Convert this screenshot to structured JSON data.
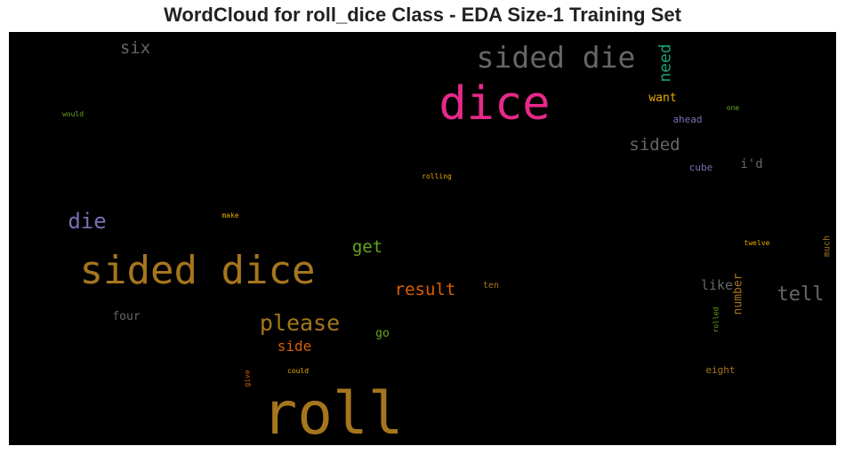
{
  "title": "WordCloud for roll_dice Class - EDA Size-1 Training Set",
  "chart_data": {
    "type": "wordcloud",
    "background": "#000000",
    "words": [
      {
        "text": "roll",
        "color": "#a6761d",
        "rotated": false
      },
      {
        "text": "dice",
        "color": "#e7298a",
        "rotated": false
      },
      {
        "text": "sided dice",
        "color": "#a6761d",
        "rotated": false
      },
      {
        "text": "sided die",
        "color": "#666666",
        "rotated": false
      },
      {
        "text": "please",
        "color": "#a6761d",
        "rotated": false
      },
      {
        "text": "die",
        "color": "#7570b3",
        "rotated": false
      },
      {
        "text": "tell",
        "color": "#666666",
        "rotated": false
      },
      {
        "text": "result",
        "color": "#d95f02",
        "rotated": false
      },
      {
        "text": "sided",
        "color": "#666666",
        "rotated": false
      },
      {
        "text": "get",
        "color": "#66a61e",
        "rotated": false
      },
      {
        "text": "six",
        "color": "#666666",
        "rotated": false
      },
      {
        "text": "need",
        "color": "#1b9e77",
        "rotated": true
      },
      {
        "text": "side",
        "color": "#d95f02",
        "rotated": false
      },
      {
        "text": "like",
        "color": "#666666",
        "rotated": false
      },
      {
        "text": "i'd",
        "color": "#666666",
        "rotated": false
      },
      {
        "text": "number",
        "color": "#a6761d",
        "rotated": true
      },
      {
        "text": "want",
        "color": "#e6ab02",
        "rotated": false
      },
      {
        "text": "four",
        "color": "#666666",
        "rotated": false
      },
      {
        "text": "go",
        "color": "#66a61e",
        "rotated": false
      },
      {
        "text": "ahead",
        "color": "#7570b3",
        "rotated": false
      },
      {
        "text": "cube",
        "color": "#7570b3",
        "rotated": false
      },
      {
        "text": "ten",
        "color": "#a6761d",
        "rotated": false
      },
      {
        "text": "eight",
        "color": "#a6761d",
        "rotated": false
      },
      {
        "text": "much",
        "color": "#a6761d",
        "rotated": true
      },
      {
        "text": "rolled",
        "color": "#66a61e",
        "rotated": true
      },
      {
        "text": "twelve",
        "color": "#e6ab02",
        "rotated": false
      },
      {
        "text": "rolling",
        "color": "#e6ab02",
        "rotated": false
      },
      {
        "text": "would",
        "color": "#66a61e",
        "rotated": false
      },
      {
        "text": "one",
        "color": "#66a61e",
        "rotated": false
      },
      {
        "text": "make",
        "color": "#e6ab02",
        "rotated": false
      },
      {
        "text": "could",
        "color": "#e6ab02",
        "rotated": false
      },
      {
        "text": "give",
        "color": "#d95f02",
        "rotated": true
      }
    ]
  }
}
